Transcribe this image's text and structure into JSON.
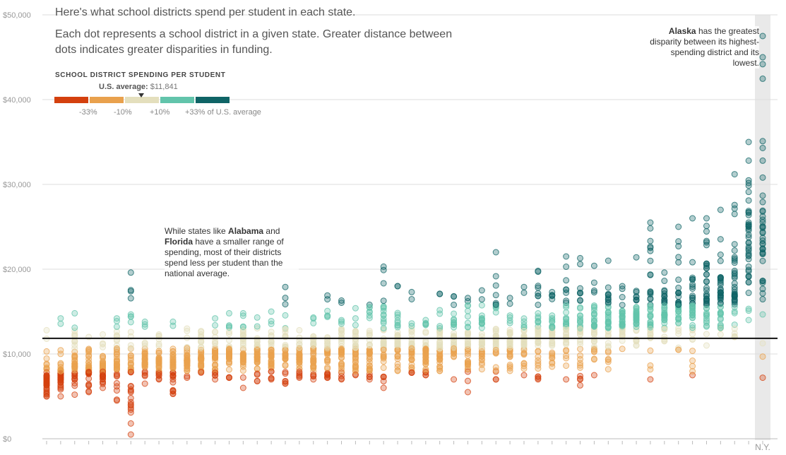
{
  "title": "Here's what school districts spend per student in each state.",
  "subtitle": "Each dot represents a school district in a given state. Greater distance between dots indicates greater disparities in funding.",
  "legend": {
    "title": "SCHOOL DISTRICT SPENDING PER STUDENT",
    "avg_label": "U.S. average:",
    "avg_value": "$11,841",
    "ticks": [
      "-33%",
      "-10%",
      "+10%",
      "+33% of U.S. average"
    ],
    "colors": [
      "#d4400e",
      "#e9a14d",
      "#e4dfbd",
      "#62c4ab",
      "#0f6466"
    ]
  },
  "annotations": {
    "alaska": {
      "bold": "Alaska",
      "text": " has the greatest disparity between its highest-spending district and its lowest."
    },
    "alabama": {
      "pre": "While states like ",
      "bold1": "Alabama",
      "mid": " and ",
      "bold2": "Florida",
      "post": " have a smaller range of spending, most of their districts spend less per student than the national average."
    }
  },
  "chart_data": {
    "type": "scatter",
    "title": "Here's what school districts spend per student in each state.",
    "ylim": [
      0,
      50000
    ],
    "yticks": [
      0,
      10000,
      20000,
      30000,
      40000,
      50000
    ],
    "ytick_labels": [
      "$0",
      "$10,000",
      "$20,000",
      "$30,000",
      "$40,000",
      "$50,000"
    ],
    "reference_line": {
      "label": "U.S. average",
      "value": 11841
    },
    "highlight_label": "N.Y.",
    "grid": true,
    "states": [
      {
        "min": 5000,
        "max": 12800,
        "median": 7000
      },
      {
        "min": 5000,
        "max": 14200,
        "median": 7200
      },
      {
        "min": 5200,
        "max": 14800,
        "median": 8500
      },
      {
        "min": 5500,
        "max": 12000,
        "median": 8200
      },
      {
        "min": 6000,
        "max": 12300,
        "median": 8300
      },
      {
        "min": 4500,
        "max": 14200,
        "median": 8800
      },
      {
        "min": 500,
        "max": 19600,
        "median": 8200
      },
      {
        "min": 6500,
        "max": 13800,
        "median": 9000
      },
      {
        "min": 7000,
        "max": 12300,
        "median": 9000
      },
      {
        "min": 5300,
        "max": 13800,
        "median": 8500
      },
      {
        "min": 7200,
        "max": 13000,
        "median": 9200
      },
      {
        "min": 7800,
        "max": 12700,
        "median": 9500
      },
      {
        "min": 7000,
        "max": 14200,
        "median": 9600
      },
      {
        "min": 7200,
        "max": 14800,
        "median": 9800
      },
      {
        "min": 6000,
        "max": 14800,
        "median": 9800
      },
      {
        "min": 6800,
        "max": 14300,
        "median": 9600
      },
      {
        "min": 7000,
        "max": 15000,
        "median": 9800
      },
      {
        "min": 6500,
        "max": 17900,
        "median": 9900
      },
      {
        "min": 7200,
        "max": 12800,
        "median": 9800
      },
      {
        "min": 7000,
        "max": 14300,
        "median": 10000
      },
      {
        "min": 7200,
        "max": 16900,
        "median": 10200
      },
      {
        "min": 7000,
        "max": 16300,
        "median": 10300
      },
      {
        "min": 7500,
        "max": 15400,
        "median": 10500
      },
      {
        "min": 7000,
        "max": 15800,
        "median": 10500
      },
      {
        "min": 6000,
        "max": 20300,
        "median": 11200
      },
      {
        "min": 8000,
        "max": 18000,
        "median": 11300
      },
      {
        "min": 7800,
        "max": 17300,
        "median": 10600
      },
      {
        "min": 7500,
        "max": 14000,
        "median": 10400
      },
      {
        "min": 8000,
        "max": 17100,
        "median": 10800
      },
      {
        "min": 7000,
        "max": 16800,
        "median": 10900
      },
      {
        "min": 5500,
        "max": 16600,
        "median": 11000
      },
      {
        "min": 8200,
        "max": 17500,
        "median": 11300
      },
      {
        "min": 7000,
        "max": 22000,
        "median": 11600
      },
      {
        "min": 8000,
        "max": 16600,
        "median": 11400
      },
      {
        "min": 7500,
        "max": 17900,
        "median": 11700
      },
      {
        "min": 7000,
        "max": 19800,
        "median": 12800
      },
      {
        "min": 8500,
        "max": 17300,
        "median": 12000
      },
      {
        "min": 7000,
        "max": 21500,
        "median": 12800
      },
      {
        "min": 6300,
        "max": 21300,
        "median": 13000
      },
      {
        "min": 7500,
        "max": 20400,
        "median": 13400
      },
      {
        "min": 8200,
        "max": 21000,
        "median": 13600
      },
      {
        "min": 10600,
        "max": 18000,
        "median": 13500
      },
      {
        "min": 11000,
        "max": 21400,
        "median": 14000
      },
      {
        "min": 7000,
        "max": 25500,
        "median": 14800
      },
      {
        "min": 11500,
        "max": 19600,
        "median": 14500
      },
      {
        "min": 10500,
        "max": 25000,
        "median": 15200
      },
      {
        "min": 7500,
        "max": 26000,
        "median": 15500
      },
      {
        "min": 11000,
        "max": 26000,
        "median": 16200
      },
      {
        "min": 12300,
        "max": 27000,
        "median": 17000
      },
      {
        "min": 12000,
        "max": 31200,
        "median": 17000
      },
      {
        "min": 14000,
        "max": 35000,
        "median": 25000
      },
      {
        "min": 7200,
        "max": 47500,
        "median": 22500
      }
    ]
  }
}
